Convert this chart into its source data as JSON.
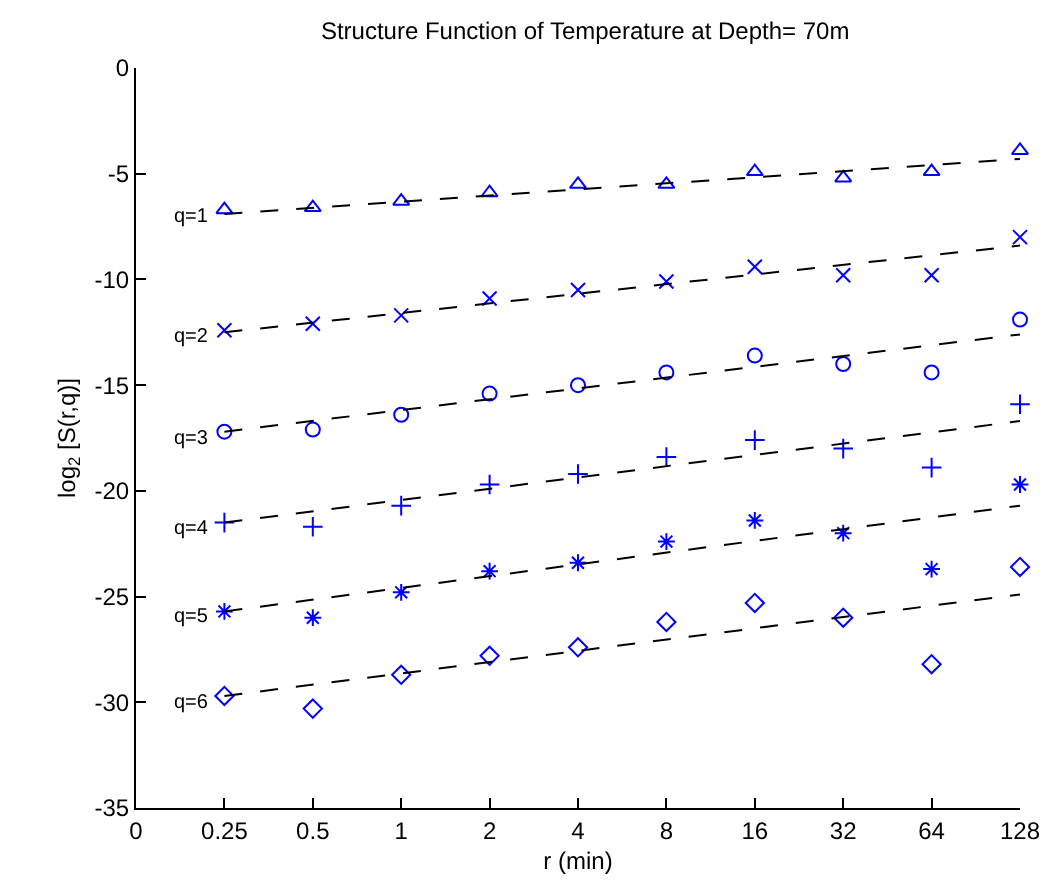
{
  "chart_data": {
    "type": "scatter",
    "title": "Structure Function of Temperature at Depth= 70m",
    "xlabel": "r (min)",
    "ylabel": "log$_{2}$ [S(r,q)]",
    "categories": [
      "0",
      "0.25",
      "0.5",
      "1",
      "2",
      "4",
      "8",
      "16",
      "32",
      "64",
      "128"
    ],
    "ylim": [
      -35,
      0
    ],
    "yticks": [
      {
        "value": -35,
        "label": "-35"
      },
      {
        "value": -30,
        "label": "-30"
      },
      {
        "value": -25,
        "label": "-25"
      },
      {
        "value": -20,
        "label": "-20"
      },
      {
        "value": -15,
        "label": "-15"
      },
      {
        "value": -10,
        "label": "-10"
      },
      {
        "value": -5,
        "label": "-5"
      },
      0
    ],
    "series": [
      {
        "marker": "triangle",
        "color": "#0000ff",
        "values": [
          null,
          -6.7,
          -6.6,
          -6.3,
          -5.9,
          -5.5,
          -5.5,
          -4.9,
          -5.2,
          -4.9,
          -3.9
        ]
      },
      {
        "marker": "cross",
        "color": "#0000ff",
        "values": [
          null,
          -12.4,
          -12.1,
          -11.7,
          -10.9,
          -10.5,
          -10.1,
          -9.4,
          -9.8,
          -9.8,
          -8.0
        ]
      },
      {
        "marker": "circle",
        "color": "#0000ff",
        "values": [
          null,
          -17.2,
          -17.1,
          -16.4,
          -15.4,
          -15.0,
          -14.4,
          -13.6,
          -14.0,
          -14.4,
          -11.9
        ]
      },
      {
        "marker": "plus",
        "color": "#0000ff",
        "values": [
          null,
          -21.5,
          -21.7,
          -20.7,
          -19.7,
          -19.2,
          -18.4,
          -17.6,
          -18.0,
          -18.9,
          -15.9
        ]
      },
      {
        "color": "#0000ff",
        "values": [
          null,
          -25.7,
          -26.0,
          -24.8,
          -23.8,
          -23.4,
          -22.4,
          -21.4,
          -22.0,
          -23.7,
          -19.7
        ]
      },
      {
        "marker": "diamond",
        "color": "#0000ff",
        "values": [
          null,
          -29.7,
          -30.3,
          -28.7,
          -27.8,
          -27.4,
          -26.2,
          -25.3,
          -26.0,
          -28.2,
          -23.6
        ]
      },
      {
        "type": "line",
        "line_style": "dashed",
        "color": "#000000",
        "x": [
          "0.25",
          "128"
        ],
        "values": [
          -6.9,
          -4.3
        ]
      },
      {
        "type": "line",
        "line_style": "dashed",
        "color": "#000000",
        "x": [
          "0.25",
          "128"
        ],
        "values": [
          -12.5,
          -8.4
        ]
      },
      {
        "type": "line",
        "line_style": "dashed",
        "color": "#000000",
        "x": [
          "0.25",
          "128"
        ],
        "values": [
          -17.2,
          -12.6
        ]
      },
      {
        "type": "line",
        "line_style": "dashed",
        "color": "#000000",
        "x": [
          "0.25",
          "128"
        ],
        "values": [
          -21.5,
          -16.7
        ]
      },
      {
        "type": "line",
        "line_style": "dashed",
        "color": "#000000",
        "x": [
          "0.25",
          "128"
        ],
        "values": [
          -25.7,
          -20.7
        ]
      },
      {
        "type": "line",
        "line_style": "dashed",
        "color": "#000000",
        "x": [
          "0.25",
          "128"
        ],
        "values": [
          -29.7,
          -24.9
        ]
      }
    ],
    "annotations": [
      "q=1",
      "q=2",
      "q=3",
      "q=4",
      "q=5",
      "q=6"
    ]
  }
}
